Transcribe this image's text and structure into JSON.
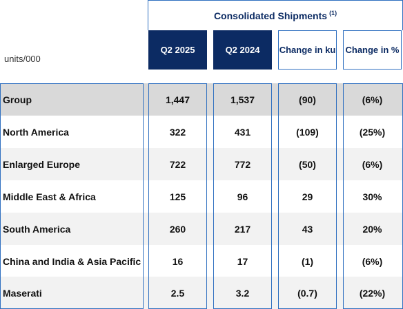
{
  "title": "Consolidated Shipments",
  "title_footnote": "(1)",
  "units": "units/000",
  "columns": [
    "Q2 2025",
    "Q2 2024",
    "Change in ku",
    "Change in %"
  ],
  "rows": [
    {
      "label": "Group",
      "values": [
        "1,447",
        "1,537",
        "(90)",
        "(6%)"
      ]
    },
    {
      "label": "North America",
      "values": [
        "322",
        "431",
        "(109)",
        "(25%)"
      ]
    },
    {
      "label": "Enlarged Europe",
      "values": [
        "722",
        "772",
        "(50)",
        "(6%)"
      ]
    },
    {
      "label": "Middle East & Africa",
      "values": [
        "125",
        "96",
        "29",
        "30%"
      ]
    },
    {
      "label": "South America",
      "values": [
        "260",
        "217",
        "43",
        "20%"
      ]
    },
    {
      "label": "China and India & Asia Pacific",
      "values": [
        "16",
        "17",
        "(1)",
        "(6%)"
      ]
    },
    {
      "label": "Maserati",
      "values": [
        "2.5",
        "3.2",
        "(0.7)",
        "(22%)"
      ]
    }
  ],
  "colors": {
    "navy": "#0c2b63",
    "border": "#2e6fc0",
    "group_bg": "#d9d9d9",
    "alt_bg": "#f2f2f2"
  }
}
